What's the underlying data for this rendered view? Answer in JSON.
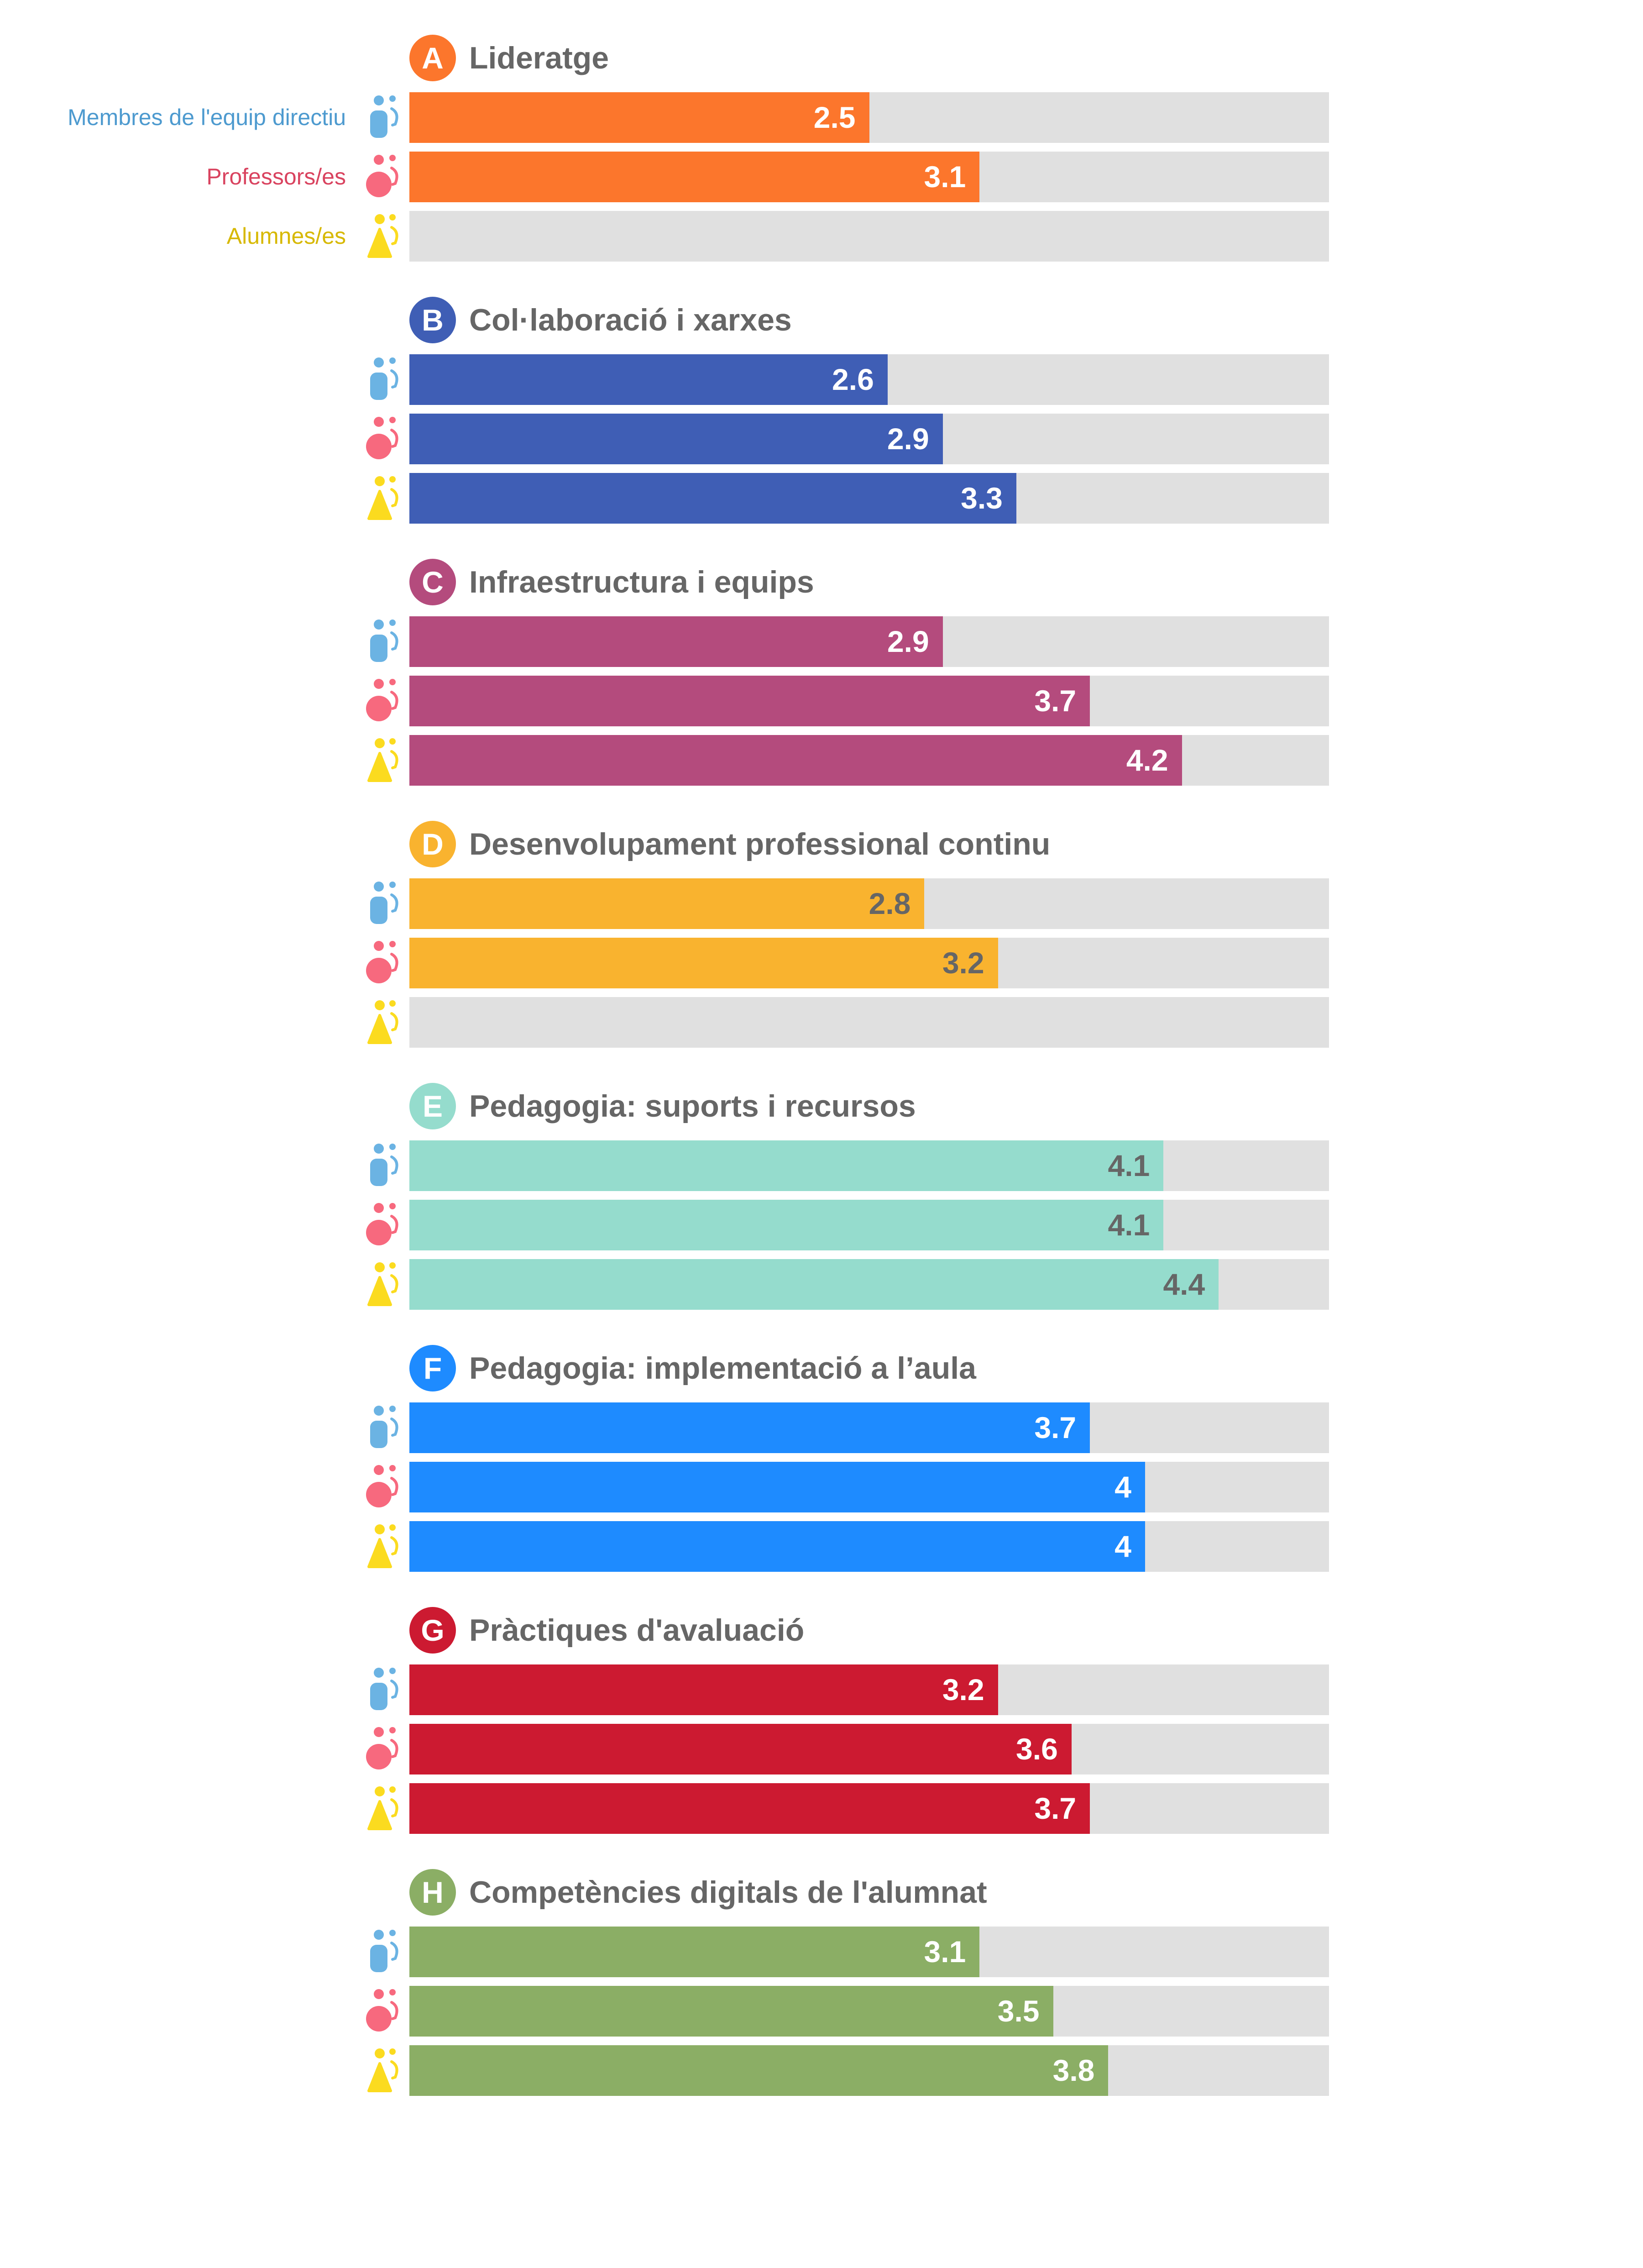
{
  "chart_data": {
    "type": "bar",
    "orientation": "horizontal",
    "xlim": [
      0,
      5
    ],
    "legend_placement": "left",
    "series": [
      {
        "name": "Membres de l'equip directiu",
        "color": "#6BB3E3",
        "label_color": "#4D9ACF",
        "icon": "staff-icon"
      },
      {
        "name": "Professors/es",
        "color": "#F7697E",
        "label_color": "#D9435F",
        "icon": "teacher-icon"
      },
      {
        "name": "Alumnes/es",
        "color": "#FBDB1F",
        "label_color": "#D7B800",
        "icon": "student-icon"
      }
    ],
    "track_color": "#E0E0E0",
    "categories": [
      {
        "letter": "A",
        "title": "Lideratge",
        "color": "#FC762C",
        "value_color": "#FFFFFF",
        "values": [
          2.5,
          3.1,
          null
        ]
      },
      {
        "letter": "B",
        "title": "Col·laboració i xarxes",
        "color": "#3F5EB5",
        "value_color": "#FFFFFF",
        "values": [
          2.6,
          2.9,
          3.3
        ]
      },
      {
        "letter": "C",
        "title": "Infraestructura i equips",
        "color": "#B44B7D",
        "value_color": "#FFFFFF",
        "values": [
          2.9,
          3.7,
          4.2
        ]
      },
      {
        "letter": "D",
        "title": "Desenvolupament professional continu",
        "color": "#F9B32F",
        "value_color": "#666666",
        "values": [
          2.8,
          3.2,
          null
        ]
      },
      {
        "letter": "E",
        "title": "Pedagogia: suports i recursos",
        "color": "#95DCCD",
        "value_color": "#666666",
        "values": [
          4.1,
          4.1,
          4.4
        ]
      },
      {
        "letter": "F",
        "title": "Pedagogia: implementació a l’aula",
        "color": "#1E8BFF",
        "value_color": "#FFFFFF",
        "values": [
          3.7,
          4,
          4
        ]
      },
      {
        "letter": "G",
        "title": "Pràctiques d'avaluació",
        "color": "#CC1A31",
        "value_color": "#FFFFFF",
        "values": [
          3.2,
          3.6,
          3.7
        ]
      },
      {
        "letter": "H",
        "title": "Competències digitals de l'alumnat",
        "color": "#8BAE65",
        "value_color": "#FFFFFF",
        "values": [
          3.1,
          3.5,
          3.8
        ]
      }
    ]
  }
}
